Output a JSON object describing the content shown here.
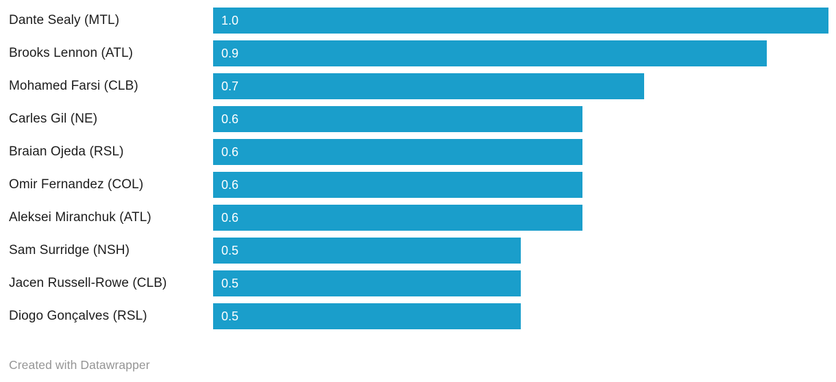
{
  "chart_data": {
    "type": "bar",
    "orientation": "horizontal",
    "title": "",
    "xlabel": "",
    "ylabel": "",
    "xlim": [
      0,
      1.0
    ],
    "grid": false,
    "legend": false,
    "bar_color": "#1a9ecb",
    "label_color": "#1d1d1d",
    "value_label_color": "#ffffff",
    "categories": [
      "Dante Sealy (MTL)",
      "Brooks Lennon (ATL)",
      "Mohamed Farsi (CLB)",
      "Carles Gil (NE)",
      "Braian Ojeda (RSL)",
      "Omir Fernandez (COL)",
      "Aleksei Miranchuk (ATL)",
      "Sam Surridge (NSH)",
      "Jacen Russell-Rowe (CLB)",
      "Diogo Gonçalves (RSL)"
    ],
    "values": [
      1.0,
      0.9,
      0.7,
      0.6,
      0.6,
      0.6,
      0.6,
      0.5,
      0.5,
      0.5
    ],
    "value_labels": [
      "1.0",
      "0.9",
      "0.7",
      "0.6",
      "0.6",
      "0.6",
      "0.6",
      "0.5",
      "0.5",
      "0.5"
    ]
  },
  "footer": {
    "attribution": "Created with Datawrapper"
  }
}
